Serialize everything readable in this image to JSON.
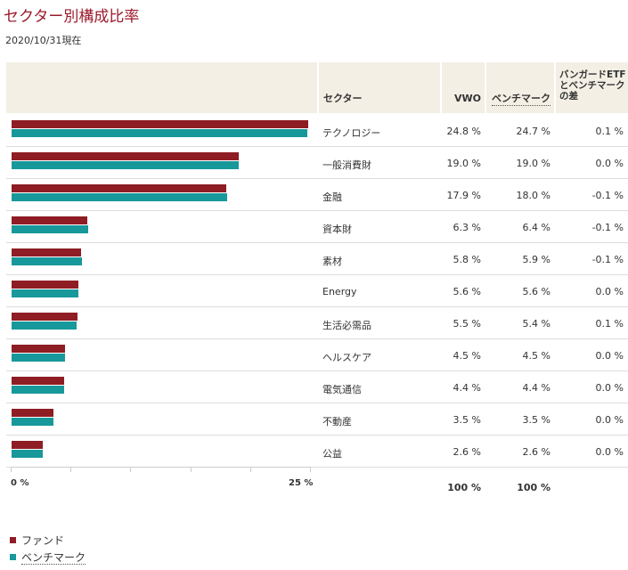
{
  "header": {
    "title": "セクター別構成比率",
    "as_of": "2020/10/31現在"
  },
  "table": {
    "col_sector": "セクター",
    "col_vwo": "VWO",
    "col_benchmark": "ベンチマーク",
    "col_diff": "バンガードETFとベンチマークの差",
    "total_vwo": "100 %",
    "total_benchmark": "100 %",
    "rows": [
      {
        "sector": "テクノロジー",
        "vwo": "24.8 %",
        "bm": "24.7 %",
        "diff": "0.1 %"
      },
      {
        "sector": "一般消費財",
        "vwo": "19.0 %",
        "bm": "19.0 %",
        "diff": "0.0 %"
      },
      {
        "sector": "金融",
        "vwo": "17.9 %",
        "bm": "18.0 %",
        "diff": "-0.1 %"
      },
      {
        "sector": "資本財",
        "vwo": "6.3 %",
        "bm": "6.4 %",
        "diff": "-0.1 %"
      },
      {
        "sector": "素材",
        "vwo": "5.8 %",
        "bm": "5.9 %",
        "diff": "-0.1 %"
      },
      {
        "sector": "Energy",
        "vwo": "5.6 %",
        "bm": "5.6 %",
        "diff": "0.0 %"
      },
      {
        "sector": "生活必需品",
        "vwo": "5.5 %",
        "bm": "5.4 %",
        "diff": "0.1 %"
      },
      {
        "sector": "ヘルスケア",
        "vwo": "4.5 %",
        "bm": "4.5 %",
        "diff": "0.0 %"
      },
      {
        "sector": "電気通信",
        "vwo": "4.4 %",
        "bm": "4.4 %",
        "diff": "0.0 %"
      },
      {
        "sector": "不動産",
        "vwo": "3.5 %",
        "bm": "3.5 %",
        "diff": "0.0 %"
      },
      {
        "sector": "公益",
        "vwo": "2.6 %",
        "bm": "2.6 %",
        "diff": "0.0 %"
      }
    ]
  },
  "legend": {
    "fund": "ファンド",
    "benchmark": "ベンチマーク"
  },
  "colors": {
    "fund": "#8e1d24",
    "benchmark": "#17989a",
    "title": "#9b1c2c"
  },
  "chart_data": {
    "type": "bar",
    "orientation": "horizontal",
    "title": "セクター別構成比率",
    "categories": [
      "テクノロジー",
      "一般消費財",
      "金融",
      "資本財",
      "素材",
      "Energy",
      "生活必需品",
      "ヘルスケア",
      "電気通信",
      "不動産",
      "公益"
    ],
    "series": [
      {
        "name": "ファンド",
        "values": [
          24.8,
          19.0,
          17.9,
          6.3,
          5.8,
          5.6,
          5.5,
          4.5,
          4.4,
          3.5,
          2.6
        ]
      },
      {
        "name": "ベンチマーク",
        "values": [
          24.7,
          19.0,
          18.0,
          6.4,
          5.9,
          5.6,
          5.4,
          4.5,
          4.4,
          3.5,
          2.6
        ]
      }
    ],
    "xlim": [
      0,
      25
    ],
    "tick_labels": [
      "0 %",
      "25 %"
    ],
    "legend_position": "bottom-left"
  }
}
